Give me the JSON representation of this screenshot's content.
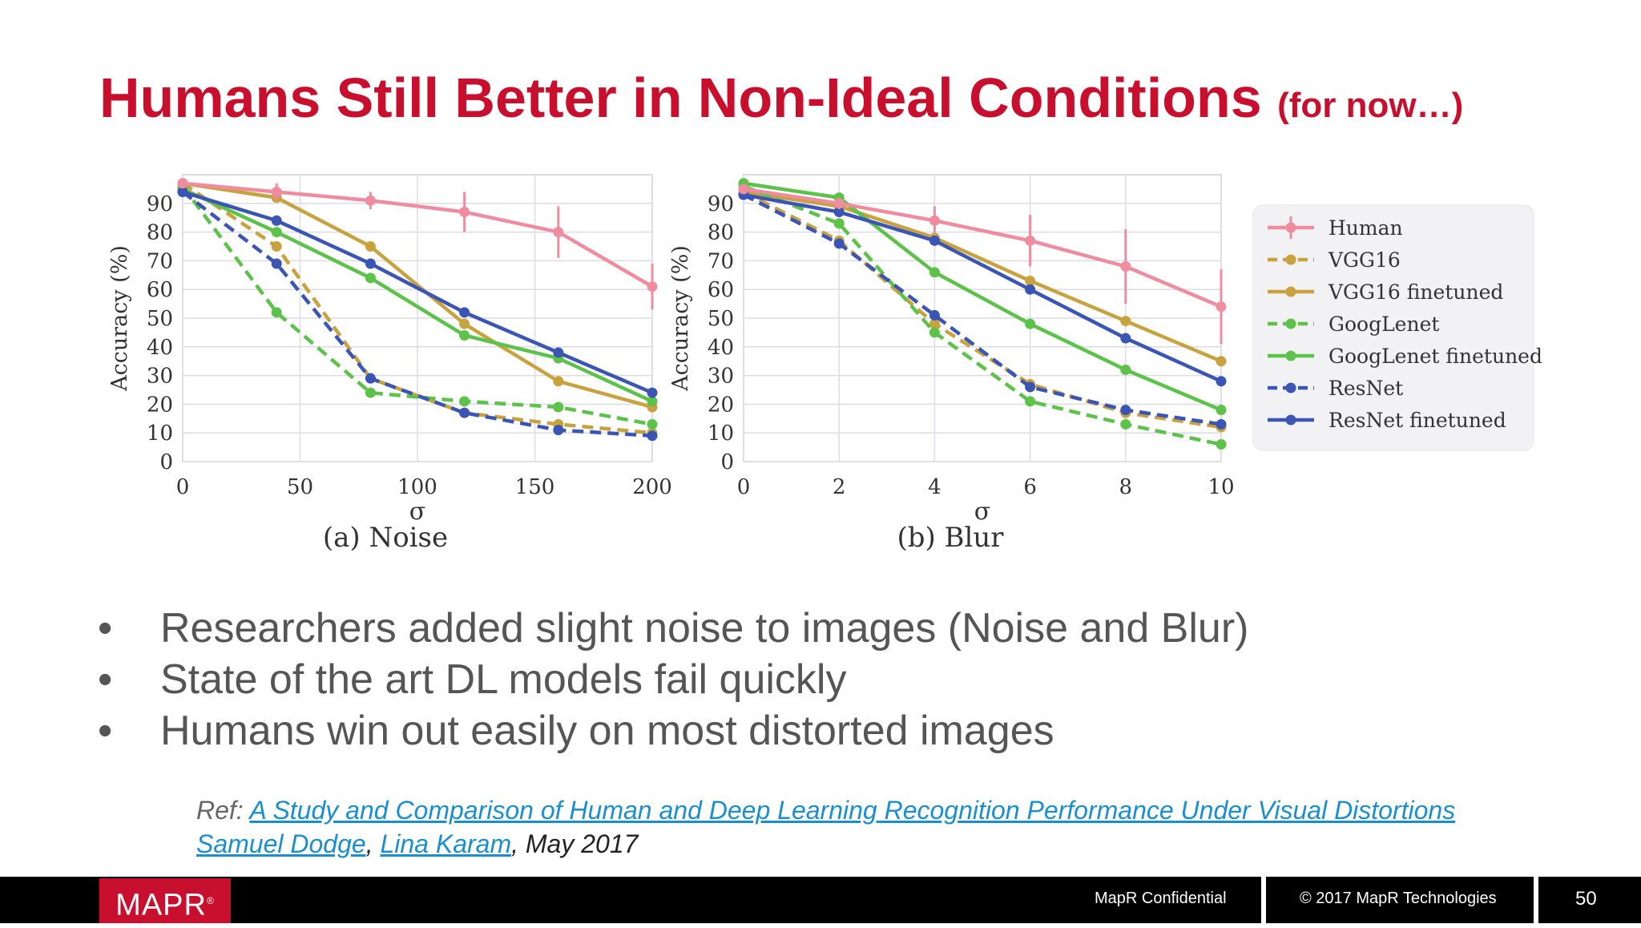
{
  "slide": {
    "title": "Humans Still Better in Non-Ideal Conditions",
    "title_suffix": "(for now…)",
    "bullets": [
      "Researchers added slight noise to images (Noise and Blur)",
      "State of the art DL models fail quickly",
      "Humans win out easily on most distorted images"
    ],
    "bullet_symbol": "•",
    "ref": {
      "label": "Ref: ",
      "paper_title": "A Study and Comparison of Human and Deep Learning Recognition Performance Under Visual Distortions",
      "author1": "Samuel Dodge",
      "separator": ", ",
      "author2": "Lina Karam",
      "date": ", May 2017"
    },
    "footer": {
      "logo": "MAPR",
      "confidential": "MapR Confidential",
      "copyright": "© 2017 MapR Technologies",
      "page_number": "50"
    },
    "colors": {
      "title": "#c8102e",
      "footer_bg": "#000000",
      "logo_bg": "#c8102e",
      "link": "#1a8fd0"
    }
  },
  "chart_data": [
    {
      "type": "line",
      "caption": "(a) Noise",
      "xlabel": "σ",
      "ylabel": "Accuracy (%)",
      "xlim": [
        0,
        200
      ],
      "ylim": [
        0,
        100
      ],
      "xticks": [
        0,
        50,
        100,
        150,
        200
      ],
      "yticks": [
        0,
        10,
        20,
        30,
        40,
        50,
        60,
        70,
        80,
        90
      ],
      "grid": true,
      "x": [
        0,
        40,
        80,
        120,
        160,
        200
      ],
      "series": [
        {
          "name": "Human",
          "color": "#f08ca0",
          "dashed": false,
          "values": [
            97,
            94,
            91,
            87,
            80,
            61
          ],
          "error": [
            0,
            3,
            3,
            7,
            9,
            8
          ]
        },
        {
          "name": "VGG16",
          "color": "#c9a240",
          "dashed": true,
          "values": [
            97,
            75,
            29,
            17,
            13,
            10
          ]
        },
        {
          "name": "VGG16 finetuned",
          "color": "#c9a240",
          "dashed": false,
          "values": [
            97,
            92,
            75,
            48,
            28,
            19
          ]
        },
        {
          "name": "GoogLenet",
          "color": "#5cc24a",
          "dashed": true,
          "values": [
            96,
            52,
            24,
            21,
            19,
            13
          ]
        },
        {
          "name": "GoogLenet finetuned",
          "color": "#5cc24a",
          "dashed": false,
          "values": [
            95,
            80,
            64,
            44,
            36,
            21
          ]
        },
        {
          "name": "ResNet",
          "color": "#3a55b4",
          "dashed": true,
          "values": [
            94,
            69,
            29,
            17,
            11,
            9
          ]
        },
        {
          "name": "ResNet finetuned",
          "color": "#3a55b4",
          "dashed": false,
          "values": [
            94,
            84,
            69,
            52,
            38,
            24
          ]
        }
      ]
    },
    {
      "type": "line",
      "caption": "(b) Blur",
      "xlabel": "σ",
      "ylabel": "Accuracy (%)",
      "xlim": [
        0,
        10
      ],
      "ylim": [
        0,
        100
      ],
      "xticks": [
        0,
        2,
        4,
        6,
        8,
        10
      ],
      "yticks": [
        0,
        10,
        20,
        30,
        40,
        50,
        60,
        70,
        80,
        90
      ],
      "grid": true,
      "legend": "right",
      "x": [
        0,
        2,
        4,
        6,
        8,
        10
      ],
      "series": [
        {
          "name": "Human",
          "color": "#f08ca0",
          "dashed": false,
          "values": [
            95,
            90,
            84,
            77,
            68,
            54
          ],
          "error": [
            0,
            2,
            5,
            9,
            13,
            13
          ]
        },
        {
          "name": "VGG16",
          "color": "#c9a240",
          "dashed": true,
          "values": [
            94,
            77,
            48,
            27,
            17,
            12
          ]
        },
        {
          "name": "VGG16 finetuned",
          "color": "#c9a240",
          "dashed": false,
          "values": [
            94,
            89,
            78,
            63,
            49,
            35
          ]
        },
        {
          "name": "GoogLenet",
          "color": "#5cc24a",
          "dashed": true,
          "values": [
            96,
            83,
            45,
            21,
            13,
            6
          ]
        },
        {
          "name": "GoogLenet finetuned",
          "color": "#5cc24a",
          "dashed": false,
          "values": [
            97,
            92,
            66,
            48,
            32,
            18
          ]
        },
        {
          "name": "ResNet",
          "color": "#3a55b4",
          "dashed": true,
          "values": [
            93,
            76,
            51,
            26,
            18,
            13
          ]
        },
        {
          "name": "ResNet finetuned",
          "color": "#3a55b4",
          "dashed": false,
          "values": [
            93,
            87,
            77,
            60,
            43,
            28
          ]
        }
      ]
    }
  ]
}
